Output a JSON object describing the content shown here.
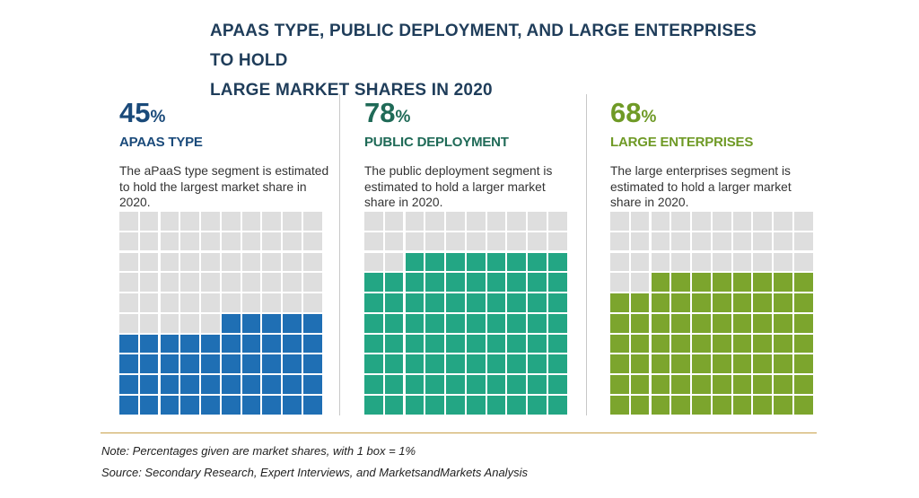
{
  "title_lines": [
    "APAAS TYPE, PUBLIC DEPLOYMENT, AND LARGE ENTERPRISES TO HOLD",
    "LARGE MARKET SHARES IN 2020"
  ],
  "notes": {
    "note": "Note: Percentages given are market shares, with 1 box = 1%",
    "source": "Source: Secondary Research, Expert Interviews, and MarketsandMarkets Analysis"
  },
  "colors": {
    "empty_box": "#dedede",
    "rule": "#c9a14a",
    "title": "#1f3d5a"
  },
  "panels": [
    {
      "percent": "45",
      "percent_symbol": "%",
      "segment": "APAAS TYPE",
      "description": "The aPaaS type segment is estimated to hold the largest market share in 2020.",
      "color": "#1f6fb4",
      "heading_color": "#1a4a7a"
    },
    {
      "percent": "78",
      "percent_symbol": "%",
      "segment": "PUBLIC DEPLOYMENT",
      "description": "The public deployment segment is estimated to hold a larger market share in 2020.",
      "color": "#23a684",
      "heading_color": "#1f6a57"
    },
    {
      "percent": "68",
      "percent_symbol": "%",
      "segment": "LARGE ENTERPRISES",
      "description": "The large enterprises segment is estimated to hold a larger market share in 2020.",
      "color": "#7ca52d",
      "heading_color": "#6f9a26"
    }
  ],
  "chart_data": [
    {
      "type": "waffle",
      "category": "APAAS TYPE",
      "value": 45,
      "total": 100,
      "unit": "%"
    },
    {
      "type": "waffle",
      "category": "PUBLIC DEPLOYMENT",
      "value": 78,
      "total": 100,
      "unit": "%"
    },
    {
      "type": "waffle",
      "category": "LARGE ENTERPRISES",
      "value": 68,
      "total": 100,
      "unit": "%"
    }
  ]
}
